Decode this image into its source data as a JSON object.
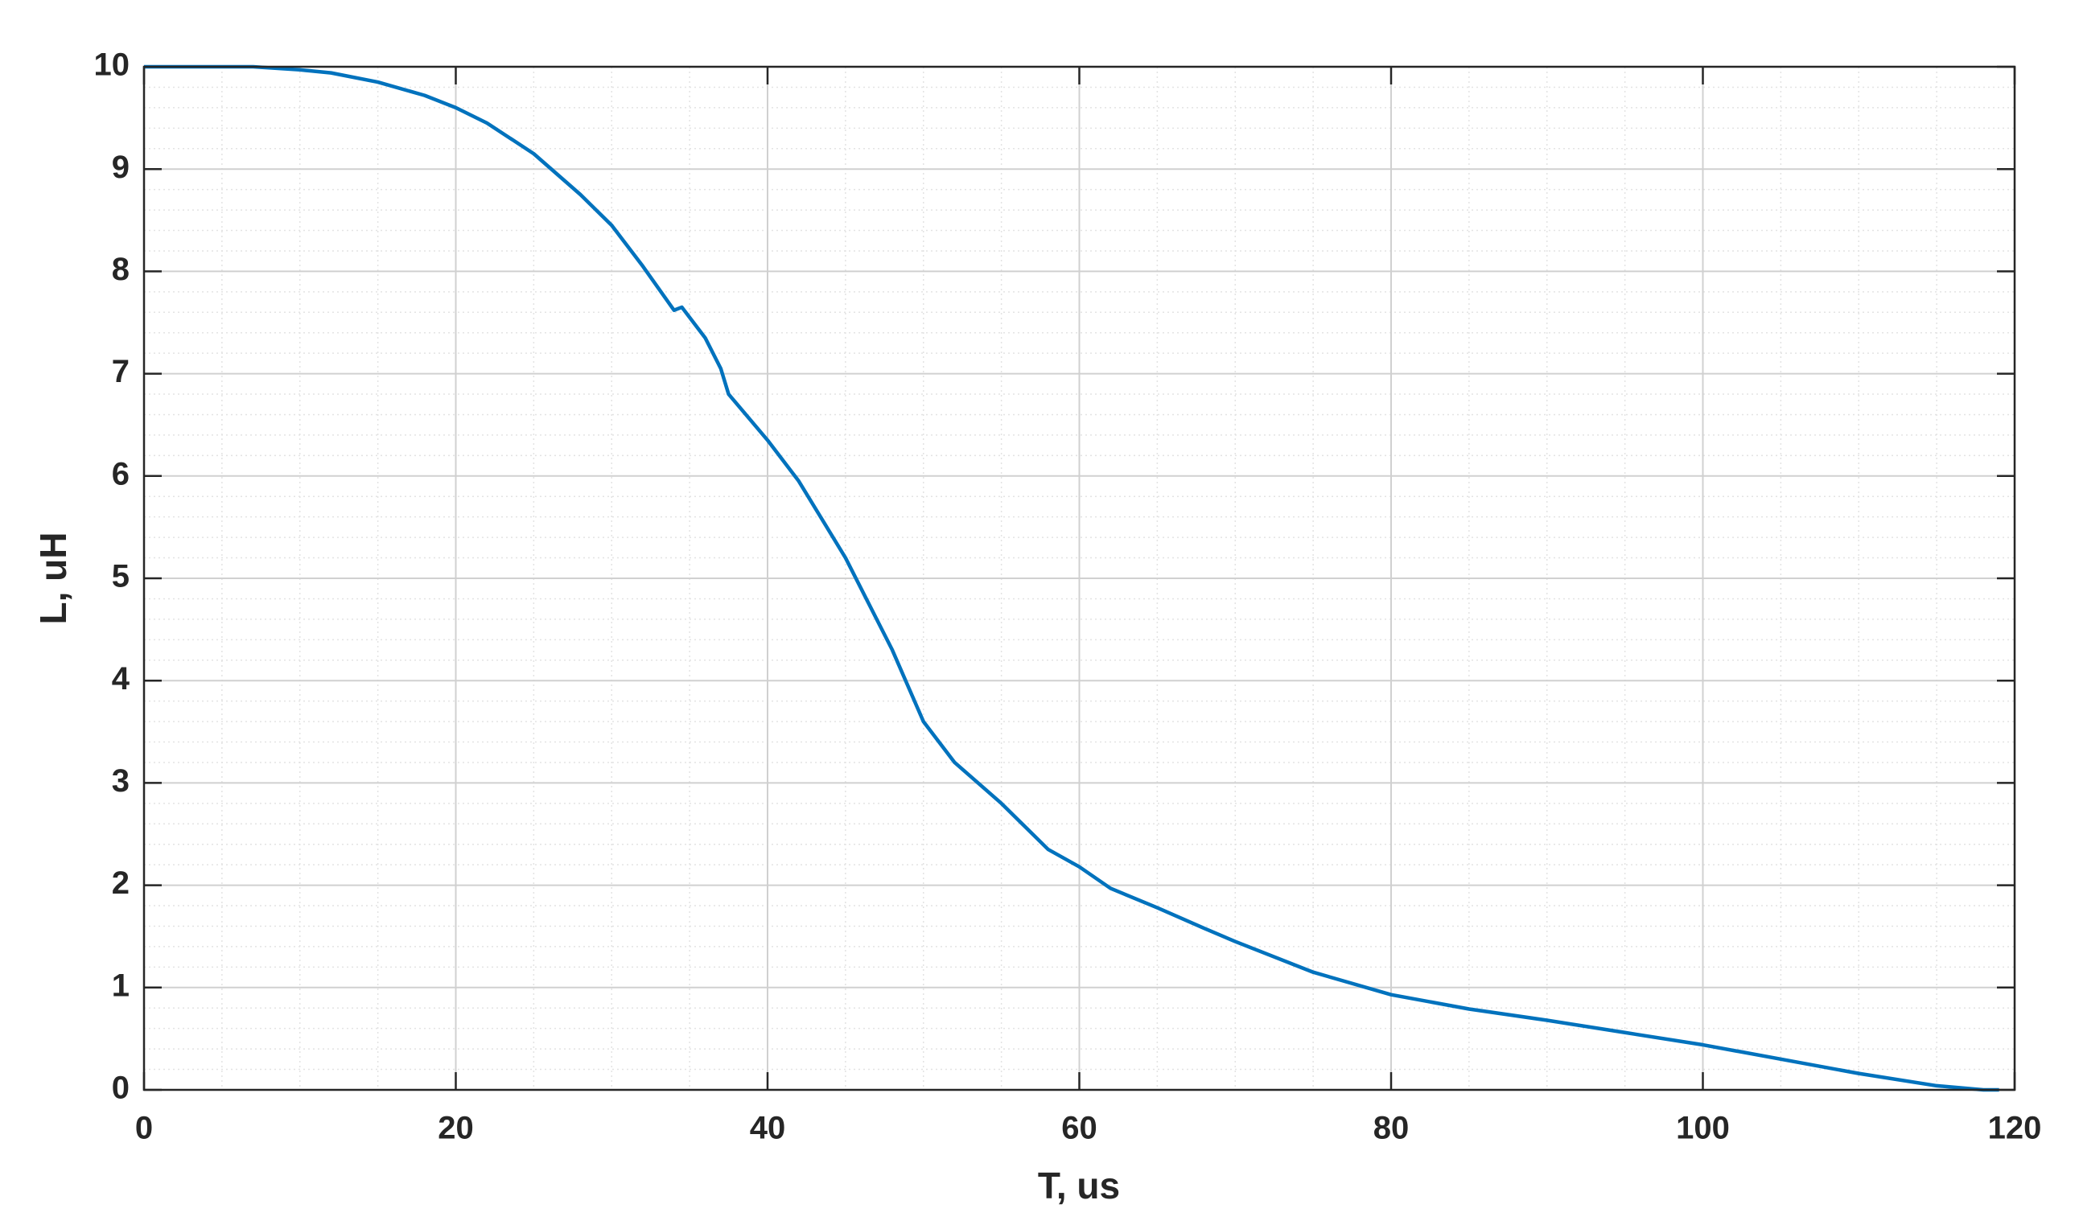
{
  "chart_data": {
    "type": "line",
    "x_label": "T, us",
    "y_label": "L, uH",
    "x": [
      0,
      5,
      7,
      10,
      12,
      15,
      18,
      20,
      22,
      25,
      28,
      30,
      32,
      34,
      34.5,
      35,
      36,
      37,
      37.5,
      40,
      42,
      45,
      48,
      50,
      52,
      55,
      58,
      60,
      62,
      65,
      68,
      70,
      75,
      80,
      85,
      90,
      95,
      100,
      105,
      110,
      115,
      118,
      119
    ],
    "series": [
      {
        "color": "#0072bd",
        "values": [
          10,
          10,
          10,
          9.97,
          9.94,
          9.85,
          9.72,
          9.6,
          9.45,
          9.15,
          8.75,
          8.45,
          8.05,
          7.62,
          7.65,
          7.55,
          7.35,
          7.05,
          6.8,
          6.35,
          5.95,
          5.2,
          4.3,
          3.6,
          3.2,
          2.8,
          2.35,
          2.18,
          1.97,
          1.78,
          1.58,
          1.45,
          1.15,
          0.93,
          0.79,
          0.68,
          0.56,
          0.44,
          0.3,
          0.16,
          0.04,
          0.0,
          0.0
        ]
      }
    ],
    "xlim": [
      0,
      120
    ],
    "ylim": [
      0,
      10
    ],
    "xticks": [
      0,
      20,
      40,
      60,
      80,
      100,
      120
    ],
    "yticks": [
      0,
      1,
      2,
      3,
      4,
      5,
      6,
      7,
      8,
      9,
      10
    ],
    "grid": true,
    "minor_grid": true
  }
}
